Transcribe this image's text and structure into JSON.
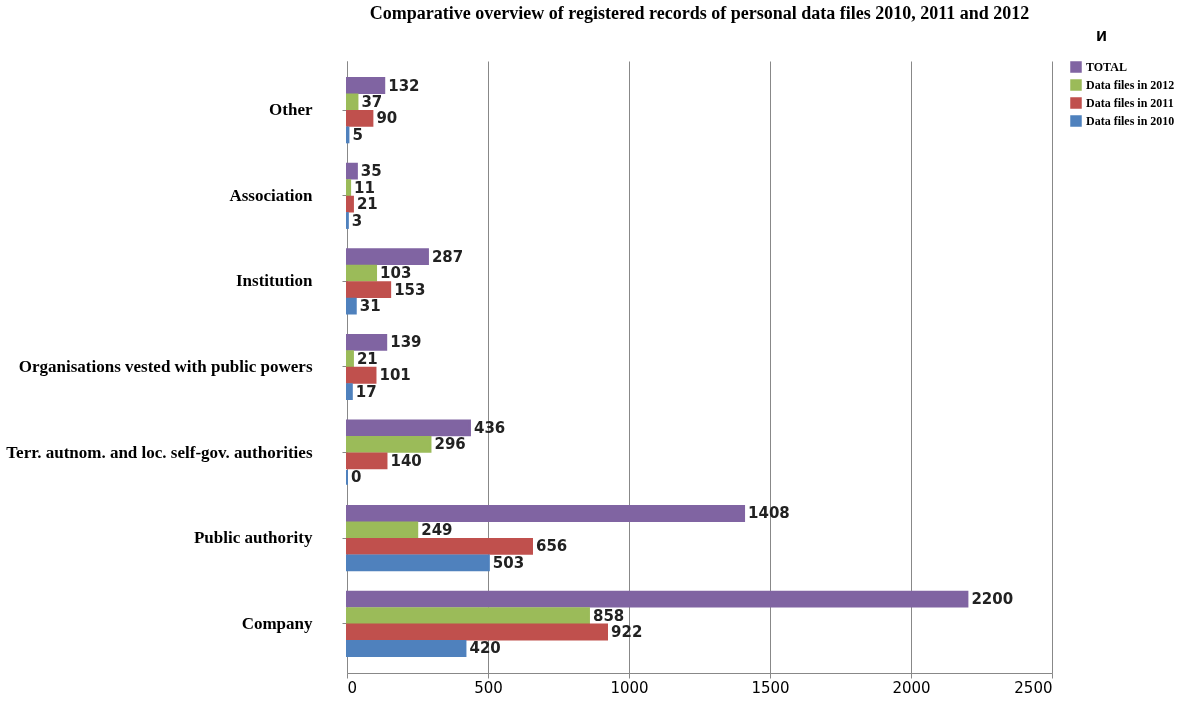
{
  "chart_data": {
    "type": "bar",
    "orientation": "horizontal",
    "title": "Comparative overview of registered records of  personal data files 2010, 2011 and 2012",
    "categories": [
      "Other",
      "Association",
      "Institution",
      "Organisations vested with public powers",
      "Terr. autnom. and loc. self-gov. authorities",
      "Public authority",
      "Company"
    ],
    "series": [
      {
        "name": "TOTAL",
        "color": "#8064a2",
        "values": [
          132,
          35,
          287,
          139,
          436,
          1408,
          2200
        ]
      },
      {
        "name": "Data files in 2012",
        "color": "#9bbb59",
        "values": [
          37,
          11,
          103,
          21,
          296,
          249,
          858
        ]
      },
      {
        "name": "Data files in 2011",
        "color": "#c0504d",
        "values": [
          90,
          21,
          153,
          101,
          140,
          656,
          922
        ]
      },
      {
        "name": "Data files in 2010",
        "color": "#4f81bd",
        "values": [
          5,
          3,
          31,
          17,
          0,
          503,
          420
        ]
      }
    ],
    "xlim": [
      0,
      2500
    ],
    "xticks": [
      0,
      500,
      1000,
      1500,
      2000,
      2500
    ],
    "grid": "x",
    "legend": "right",
    "data_labels": true,
    "annotations": [
      "и"
    ]
  }
}
